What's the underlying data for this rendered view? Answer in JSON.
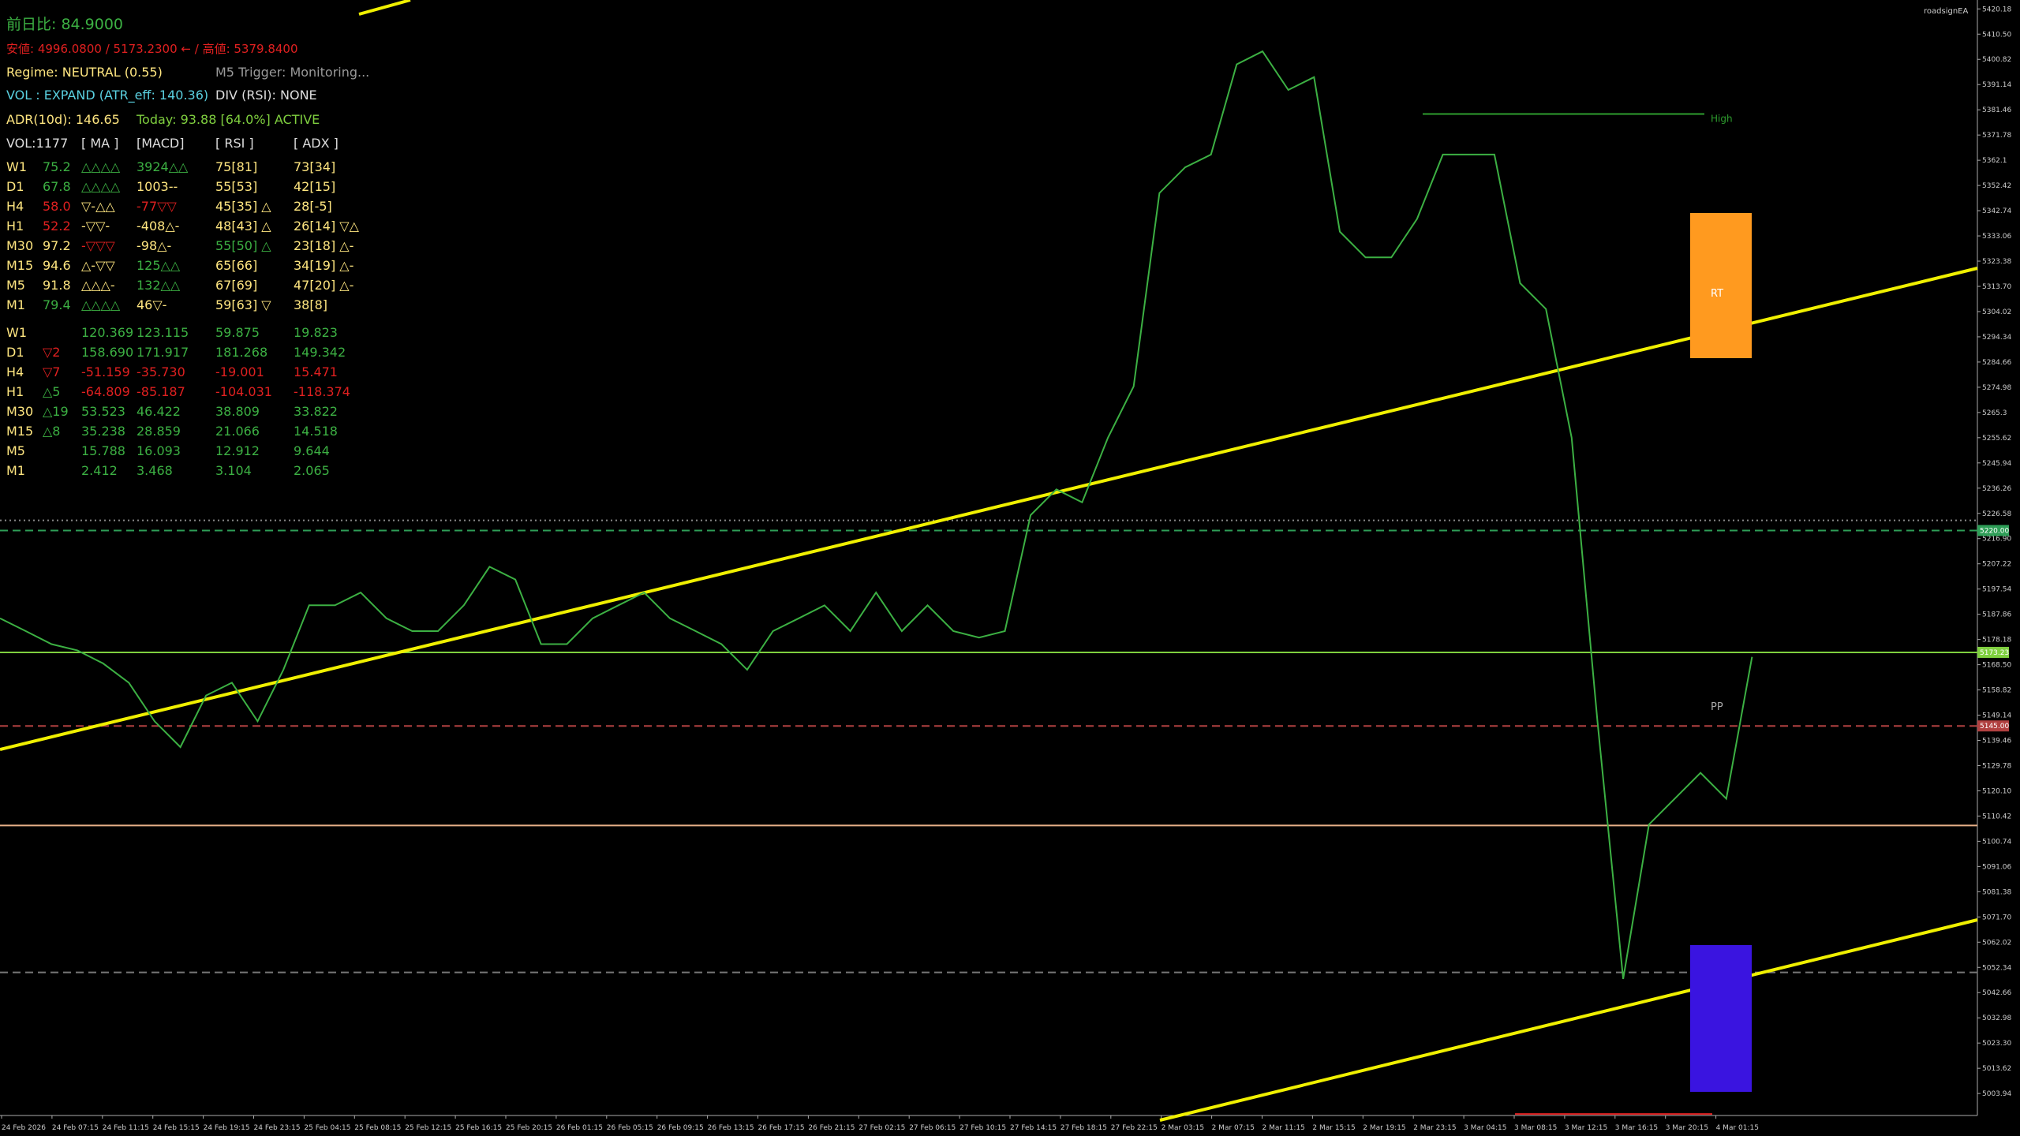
{
  "header": {
    "prev_day": "前日比: 84.9000",
    "range": "安値: 4996.0800 / 5173.2300 ← / 高値: 5379.8400",
    "regime": "Regime: NEUTRAL (0.55)",
    "trigger": "M5 Trigger: Monitoring...",
    "vol": "VOL : EXPAND (ATR_eff: 140.36)",
    "div": "DIV (RSI): NONE",
    "adr": "ADR(10d): 146.65",
    "today": "Today: 93.88 [64.0%] ACTIVE",
    "brand": "roadsignEA"
  },
  "table": {
    "header": [
      "VOL:1177",
      "[ MA ]",
      "[MACD]",
      "[ RSI ]",
      "[ ADX ]"
    ],
    "rows": [
      {
        "cells": [
          "W1",
          "75.2",
          "△△△△",
          "3924△△",
          "75[81]",
          "73[34]"
        ],
        "colors": [
          "#ffe680",
          "#3cb043",
          "#3cb043",
          "#3cb043",
          "#ffe680",
          "#ffe680"
        ]
      },
      {
        "cells": [
          "D1",
          "67.8",
          "△△△△",
          "1003--",
          "55[53]",
          "42[15]"
        ],
        "colors": [
          "#ffe680",
          "#3cb043",
          "#3cb043",
          "#ffe680",
          "#ffe680",
          "#ffe680"
        ]
      },
      {
        "cells": [
          "H4",
          "58.0",
          "▽-△△",
          "-77▽▽",
          "45[35] △",
          "28[-5]"
        ],
        "colors": [
          "#ffe680",
          "#e02020",
          "#ffe680",
          "#e02020",
          "#ffe680",
          "#ffe680"
        ]
      },
      {
        "cells": [
          "H1",
          "52.2",
          "-▽▽-",
          "-408△-",
          "48[43] △",
          "26[14] ▽△"
        ],
        "colors": [
          "#ffe680",
          "#e02020",
          "#ffe680",
          "#ffe680",
          "#ffe680",
          "#ffe680"
        ]
      },
      {
        "cells": [
          "M30",
          "97.2",
          "-▽▽▽",
          "-98△-",
          "55[50] △",
          "23[18] △-"
        ],
        "colors": [
          "#ffe680",
          "#ffe680",
          "#e02020",
          "#ffe680",
          "#3cb043",
          "#ffe680"
        ]
      },
      {
        "cells": [
          "M15",
          "94.6",
          "△-▽▽",
          "125△△",
          "65[66]",
          "34[19] △-"
        ],
        "colors": [
          "#ffe680",
          "#ffe680",
          "#ffe680",
          "#3cb043",
          "#ffe680",
          "#ffe680"
        ]
      },
      {
        "cells": [
          "M5",
          "91.8",
          "△△△-",
          "132△△",
          "67[69]",
          "47[20] △-"
        ],
        "colors": [
          "#ffe680",
          "#ffe680",
          "#ffe680",
          "#3cb043",
          "#ffe680",
          "#ffe680"
        ]
      },
      {
        "cells": [
          "M1",
          "79.4",
          "△△△△",
          "46▽-",
          "59[63] ▽",
          "38[8]"
        ],
        "colors": [
          "#ffe680",
          "#3cb043",
          "#3cb043",
          "#ffe680",
          "#ffe680",
          "#ffe680"
        ]
      }
    ]
  },
  "table2": {
    "rows": [
      {
        "tf": "W1",
        "values": [
          "120.369",
          "123.115",
          "59.875",
          "19.823"
        ],
        "color": "#3cb043"
      },
      {
        "tf": "D1",
        "delta": "▽2",
        "values": [
          "158.690",
          "171.917",
          "181.268",
          "149.342"
        ],
        "color": "#3cb043",
        "delta_color": "#e02020"
      },
      {
        "tf": "H4",
        "delta": "▽7",
        "values": [
          "-51.159",
          "-35.730",
          "-19.001",
          "15.471"
        ],
        "color": "#e02020",
        "delta_color": "#e02020"
      },
      {
        "tf": "H1",
        "delta": "△5",
        "values": [
          "-64.809",
          "-85.187",
          "-104.031",
          "-118.374"
        ],
        "color": "#e02020",
        "delta_color": "#3cb043"
      },
      {
        "tf": "M30",
        "delta": "△19",
        "values": [
          "53.523",
          "46.422",
          "38.809",
          "33.822"
        ],
        "color": "#3cb043",
        "delta_color": "#3cb043"
      },
      {
        "tf": "M15",
        "delta": "△8",
        "values": [
          "35.238",
          "28.859",
          "21.066",
          "14.518"
        ],
        "color": "#3cb043",
        "delta_color": "#3cb043"
      },
      {
        "tf": "M5",
        "values": [
          "15.788",
          "16.093",
          "12.912",
          "9.644"
        ],
        "color": "#3cb043"
      },
      {
        "tf": "M1",
        "values": [
          "2.412",
          "3.468",
          "3.104",
          "2.065"
        ],
        "color": "#3cb043"
      }
    ]
  },
  "chart": {
    "ylim": [
      4995.5,
      5423.6
    ],
    "yticks": [
      5420.18,
      {
        "value": 5410.5,
        "label": "5410.50"
      },
      5400.82,
      5391.14,
      5381.46,
      5371.78,
      5362.1,
      5352.42,
      5342.74,
      5333.06,
      5323.38,
      {
        "value": 5313.7,
        "label": "5313.70"
      },
      5304.02,
      5294.34,
      5284.66,
      5274.98,
      5265.3,
      5255.62,
      5245.94,
      5236.26,
      5226.58,
      {
        "value": 5216.9,
        "label": "5216.90"
      },
      5207.22,
      5197.54,
      5187.86,
      5178.18,
      {
        "value": 5168.5,
        "label": "5168.50"
      },
      5158.82,
      5149.14,
      5139.46,
      5129.78,
      {
        "value": 5120.1,
        "label": "5120.10"
      },
      5110.42,
      5100.74,
      5091.06,
      5081.38,
      {
        "value": 5071.7,
        "label": "5071.70"
      },
      5062.02,
      5052.34,
      5042.66,
      5032.98,
      {
        "value": 5023.3,
        "label": "5023.30"
      },
      5013.62,
      5003.94
    ],
    "xticks": [
      "24 Feb 2026",
      "24 Feb 07:15",
      "24 Feb 11:15",
      "24 Feb 15:15",
      "24 Feb 19:15",
      "24 Feb 23:15",
      "25 Feb 04:15",
      "25 Feb 08:15",
      "25 Feb 12:15",
      "25 Feb 16:15",
      "25 Feb 20:15",
      "26 Feb 01:15",
      "26 Feb 05:15",
      "26 Feb 09:15",
      "26 Feb 13:15",
      "26 Feb 17:15",
      "26 Feb 21:15",
      "27 Feb 02:15",
      "27 Feb 06:15",
      "27 Feb 10:15",
      "27 Feb 14:15",
      "27 Feb 18:15",
      "27 Feb 22:15",
      "2 Mar 03:15",
      "2 Mar 07:15",
      "2 Mar 11:15",
      "2 Mar 15:15",
      "2 Mar 19:15",
      "2 Mar 23:15",
      "3 Mar 04:15",
      "3 Mar 08:15",
      "3 Mar 12:15",
      "3 Mar 16:15",
      "3 Mar 20:15",
      "4 Mar 01:15"
    ],
    "close": {
      "color": "#3cb043",
      "values": [
        5186.3,
        5181.4,
        5176.4,
        5174.0,
        5169.0,
        5161.6,
        5146.8,
        5136.9,
        5156.7,
        5161.6,
        5146.8,
        5166.6,
        5191.3,
        5191.3,
        5196.2,
        5186.3,
        5181.4,
        5181.4,
        5191.3,
        5206.1,
        5201.2,
        5176.4,
        5176.4,
        5186.3,
        5191.3,
        5196.2,
        5186.3,
        5181.4,
        5176.4,
        5166.6,
        5181.4,
        5186.3,
        5191.3,
        5181.4,
        5196.2,
        5181.4,
        5191.3,
        5181.4,
        5178.9,
        5181.4,
        5225.9,
        5235.8,
        5230.8,
        5255.6,
        5275.3,
        5349.5,
        5359.4,
        5364.3,
        5398.9,
        5403.9,
        5389.1,
        5394.0,
        5334.7,
        5324.8,
        5324.8,
        5339.6,
        5364.3,
        5364.3,
        5364.3,
        5314.9,
        5305.0,
        5255.6,
        5146.8,
        5047.9,
        5107.2,
        5117.1,
        5127.0,
        5117.1,
        5171.5
      ]
    },
    "levels": [
      {
        "value": 5379.84,
        "label": "High",
        "color": "#2e9e2e",
        "style": "solid"
      },
      {
        "value": 5223.9,
        "color": "#888888",
        "style": "dotted"
      },
      {
        "value": 5220,
        "color": "#2e9e57",
        "style": "dashed",
        "badge": "5220.00"
      },
      {
        "value": 5173.23,
        "color": "#7fcf3f",
        "style": "solid",
        "badge": "5173.23"
      },
      {
        "value": 5145,
        "color": "#b04040",
        "style": "dashed",
        "badge": "5145.00"
      },
      {
        "value": 5106.8,
        "color": "#e8b088",
        "style": "solid"
      },
      {
        "value": 5050.4,
        "color": "#777777",
        "style": "dashed"
      },
      {
        "value": 4996.08,
        "color": "#e02020",
        "style": "solid"
      }
    ],
    "annotations": {
      "rt": "RT",
      "pp": "PP"
    }
  }
}
